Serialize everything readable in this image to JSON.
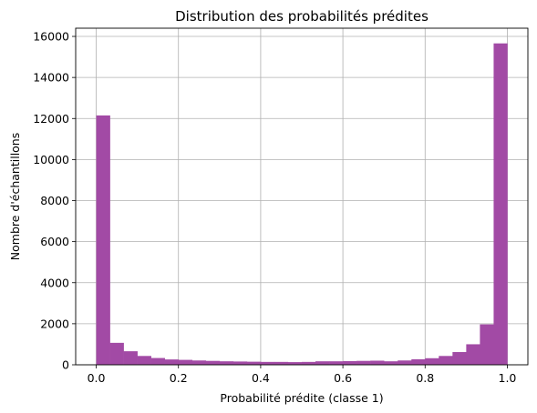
{
  "chart_data": {
    "type": "bar",
    "title": "Distribution des probabilités prédites",
    "xlabel": "Probabilité prédite (classe 1)",
    "ylabel": "Nombre d'échantillons",
    "xlim": [
      -0.05,
      1.05
    ],
    "ylim": [
      0,
      16400
    ],
    "grid": true,
    "bar_color": "#a24aa5",
    "grid_color": "#b0b0b0",
    "bin_width": 0.03333,
    "bins_start": [
      0.0,
      0.0333,
      0.0667,
      0.1,
      0.1333,
      0.1667,
      0.2,
      0.2333,
      0.2667,
      0.3,
      0.3333,
      0.3667,
      0.4,
      0.4333,
      0.4667,
      0.5,
      0.5333,
      0.5667,
      0.6,
      0.6333,
      0.6667,
      0.7,
      0.7333,
      0.7667,
      0.8,
      0.8333,
      0.8667,
      0.9,
      0.9333,
      0.9667
    ],
    "values": [
      12150,
      1070,
      660,
      430,
      330,
      260,
      240,
      210,
      190,
      170,
      160,
      150,
      140,
      140,
      130,
      140,
      170,
      170,
      180,
      190,
      200,
      170,
      210,
      270,
      320,
      430,
      620,
      1000,
      1970,
      15660
    ],
    "x_ticks": [
      0.0,
      0.2,
      0.4,
      0.6,
      0.8,
      1.0
    ],
    "x_tick_labels": [
      "0.0",
      "0.2",
      "0.4",
      "0.6",
      "0.8",
      "1.0"
    ],
    "y_ticks": [
      0,
      2000,
      4000,
      6000,
      8000,
      10000,
      12000,
      14000,
      16000
    ],
    "y_tick_labels": [
      "0",
      "2000",
      "4000",
      "6000",
      "8000",
      "10000",
      "12000",
      "14000",
      "16000"
    ]
  }
}
